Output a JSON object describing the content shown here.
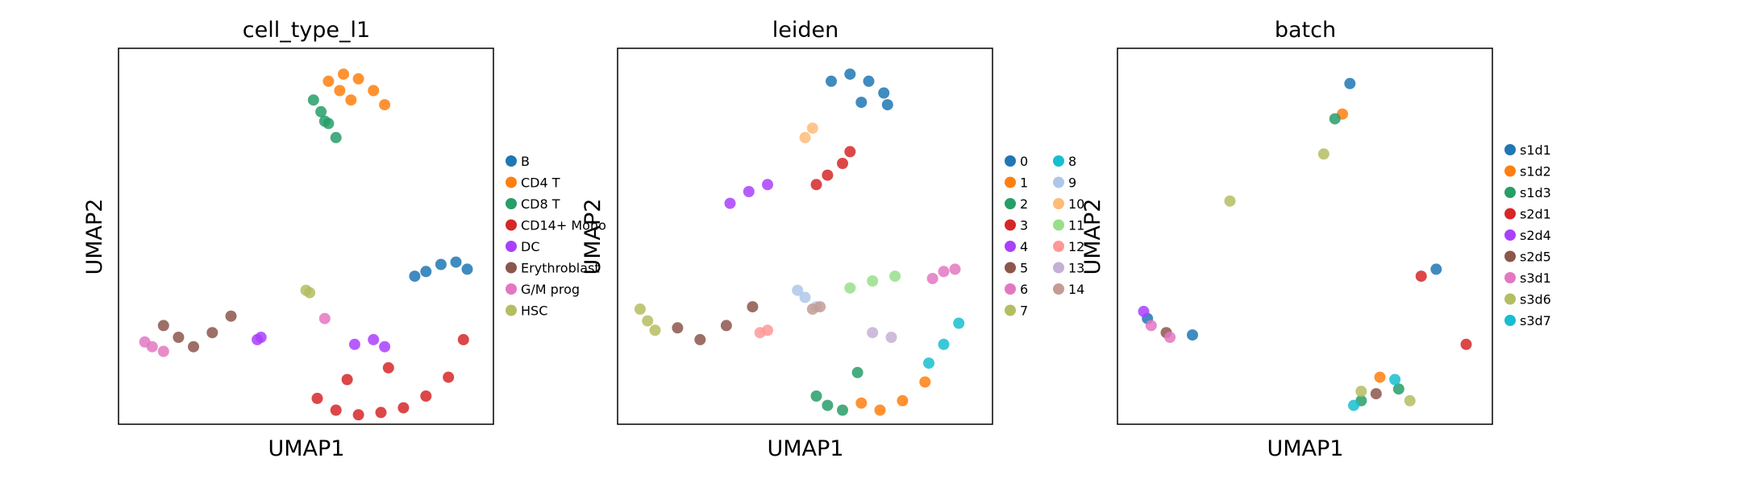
{
  "figure": {
    "panels": [
      {
        "title": "cell_type_l1",
        "xlabel": "UMAP1",
        "ylabel": "UMAP2",
        "legend": {
          "columns": 1,
          "entries": [
            {
              "label": "B",
              "color": "#1f77b4"
            },
            {
              "label": "CD4 T",
              "color": "#ff7f0e"
            },
            {
              "label": "CD8 T",
              "color": "#279e68"
            },
            {
              "label": "CD14+ Mono",
              "color": "#d62728"
            },
            {
              "label": "DC",
              "color": "#aa40fc"
            },
            {
              "label": "Erythroblast",
              "color": "#8c564b"
            },
            {
              "label": "G/M prog",
              "color": "#e377c2"
            },
            {
              "label": "HSC",
              "color": "#b5bd61"
            }
          ]
        }
      },
      {
        "title": "leiden",
        "xlabel": "UMAP1",
        "ylabel": "UMAP2",
        "legend": {
          "columns": 2,
          "entries": [
            {
              "label": "0",
              "color": "#1f77b4"
            },
            {
              "label": "1",
              "color": "#ff7f0e"
            },
            {
              "label": "2",
              "color": "#279e68"
            },
            {
              "label": "3",
              "color": "#d62728"
            },
            {
              "label": "4",
              "color": "#aa40fc"
            },
            {
              "label": "5",
              "color": "#8c564b"
            },
            {
              "label": "6",
              "color": "#e377c2"
            },
            {
              "label": "7",
              "color": "#b5bd61"
            },
            {
              "label": "8",
              "color": "#17becf"
            },
            {
              "label": "9",
              "color": "#aec7e8"
            },
            {
              "label": "10",
              "color": "#ffbb78"
            },
            {
              "label": "11",
              "color": "#98df8a"
            },
            {
              "label": "12",
              "color": "#ff9896"
            },
            {
              "label": "13",
              "color": "#c5b0d5"
            },
            {
              "label": "14",
              "color": "#c49c94"
            }
          ]
        }
      },
      {
        "title": "batch",
        "xlabel": "UMAP1",
        "ylabel": "UMAP2",
        "legend": {
          "columns": 1,
          "entries": [
            {
              "label": "s1d1",
              "color": "#1f77b4"
            },
            {
              "label": "s1d2",
              "color": "#ff7f0e"
            },
            {
              "label": "s1d3",
              "color": "#279e68"
            },
            {
              "label": "s2d1",
              "color": "#d62728"
            },
            {
              "label": "s2d4",
              "color": "#aa40fc"
            },
            {
              "label": "s2d5",
              "color": "#8c564b"
            },
            {
              "label": "s3d1",
              "color": "#e377c2"
            },
            {
              "label": "s3d6",
              "color": "#b5bd61"
            },
            {
              "label": "s3d7",
              "color": "#17becf"
            }
          ]
        }
      }
    ]
  },
  "chart_data": [
    {
      "type": "scatter",
      "title": "cell_type_l1",
      "xlabel": "UMAP1",
      "ylabel": "UMAP2",
      "ticks_shown": false,
      "grid": false,
      "legend_position": "right",
      "series": [
        {
          "name": "B",
          "color": "#1f77b4",
          "x": [
            8.2,
            8.6,
            9.0,
            9.3,
            7.9
          ],
          "y": [
            6.5,
            6.8,
            6.9,
            6.6,
            6.3
          ]
        },
        {
          "name": "CD4 T",
          "color": "#ff7f0e",
          "x": [
            5.6,
            6.0,
            6.4,
            6.8,
            7.1,
            6.2,
            5.9
          ],
          "y": [
            14.6,
            14.9,
            14.7,
            14.2,
            13.6,
            13.8,
            14.2
          ]
        },
        {
          "name": "CD8 T",
          "color": "#279e68",
          "x": [
            5.2,
            5.4,
            5.6,
            5.8,
            5.5
          ],
          "y": [
            13.8,
            13.3,
            12.8,
            12.2,
            12.9
          ]
        },
        {
          "name": "CD14+ Mono",
          "color": "#d62728",
          "x": [
            5.3,
            5.8,
            6.4,
            7.0,
            7.6,
            8.2,
            8.8,
            9.2,
            6.1,
            7.2
          ],
          "y": [
            1.1,
            0.6,
            0.4,
            0.5,
            0.7,
            1.2,
            2.0,
            3.6,
            1.9,
            2.4
          ]
        },
        {
          "name": "DC",
          "color": "#aa40fc",
          "x": [
            3.7,
            3.8,
            6.3,
            6.8,
            7.1
          ],
          "y": [
            3.6,
            3.7,
            3.4,
            3.6,
            3.3
          ]
        },
        {
          "name": "Erythroblast",
          "color": "#8c564b",
          "x": [
            1.2,
            1.6,
            2.0,
            2.5,
            3.0
          ],
          "y": [
            4.2,
            3.7,
            3.3,
            3.9,
            4.6
          ]
        },
        {
          "name": "G/M prog",
          "color": "#e377c2",
          "x": [
            0.7,
            0.9,
            1.2,
            5.5
          ],
          "y": [
            3.5,
            3.3,
            3.1,
            4.5
          ]
        },
        {
          "name": "HSC",
          "color": "#b5bd61",
          "x": [
            5.0,
            5.1
          ],
          "y": [
            5.7,
            5.6
          ]
        }
      ]
    },
    {
      "type": "scatter",
      "title": "leiden",
      "xlabel": "UMAP1",
      "ylabel": "UMAP2",
      "ticks_shown": false,
      "grid": false,
      "legend_position": "right",
      "series": [
        {
          "name": "0",
          "color": "#1f77b4",
          "x": [
            5.7,
            6.2,
            6.7,
            7.1,
            7.2,
            6.5
          ],
          "y": [
            14.6,
            14.9,
            14.6,
            14.1,
            13.6,
            13.7
          ]
        },
        {
          "name": "1",
          "color": "#ff7f0e",
          "x": [
            6.5,
            7.0,
            7.6,
            8.2
          ],
          "y": [
            0.9,
            0.6,
            1.0,
            1.8
          ]
        },
        {
          "name": "2",
          "color": "#279e68",
          "x": [
            5.3,
            5.6,
            6.0,
            6.4
          ],
          "y": [
            1.2,
            0.8,
            0.6,
            2.2
          ]
        },
        {
          "name": "3",
          "color": "#d62728",
          "x": [
            5.3,
            5.6,
            6.0,
            6.2
          ],
          "y": [
            10.2,
            10.6,
            11.1,
            11.6
          ]
        },
        {
          "name": "4",
          "color": "#aa40fc",
          "x": [
            3.0,
            3.5,
            4.0
          ],
          "y": [
            9.4,
            9.9,
            10.2
          ]
        },
        {
          "name": "5",
          "color": "#8c564b",
          "x": [
            1.6,
            2.2,
            2.9,
            3.6
          ],
          "y": [
            4.1,
            3.6,
            4.2,
            5.0
          ]
        },
        {
          "name": "6",
          "color": "#e377c2",
          "x": [
            8.4,
            8.7,
            9.0
          ],
          "y": [
            6.2,
            6.5,
            6.6
          ]
        },
        {
          "name": "7",
          "color": "#b5bd61",
          "x": [
            0.6,
            0.8,
            1.0
          ],
          "y": [
            4.9,
            4.4,
            4.0
          ]
        },
        {
          "name": "8",
          "color": "#17becf",
          "x": [
            8.3,
            8.7,
            9.1
          ],
          "y": [
            2.6,
            3.4,
            4.3
          ]
        },
        {
          "name": "9",
          "color": "#aec7e8",
          "x": [
            4.8,
            5.0,
            5.3
          ],
          "y": [
            5.7,
            5.4,
            5.0
          ]
        },
        {
          "name": "10",
          "color": "#ffbb78",
          "x": [
            5.0,
            5.2
          ],
          "y": [
            12.2,
            12.6
          ]
        },
        {
          "name": "11",
          "color": "#98df8a",
          "x": [
            6.2,
            6.8,
            7.4
          ],
          "y": [
            5.8,
            6.1,
            6.3
          ]
        },
        {
          "name": "12",
          "color": "#ff9896",
          "x": [
            3.8,
            4.0
          ],
          "y": [
            3.9,
            4.0
          ]
        },
        {
          "name": "13",
          "color": "#c5b0d5",
          "x": [
            6.8,
            7.3
          ],
          "y": [
            3.9,
            3.7
          ]
        },
        {
          "name": "14",
          "color": "#c49c94",
          "x": [
            5.2,
            5.4
          ],
          "y": [
            4.9,
            5.0
          ]
        }
      ]
    },
    {
      "type": "scatter",
      "title": "batch",
      "xlabel": "UMAP1",
      "ylabel": "UMAP2",
      "ticks_shown": false,
      "grid": false,
      "legend_position": "right",
      "series": [
        {
          "name": "s1d1",
          "color": "#1f77b4",
          "x": [
            0.8,
            6.2,
            8.5,
            2.0
          ],
          "y": [
            4.5,
            14.5,
            6.6,
            3.8
          ]
        },
        {
          "name": "s1d2",
          "color": "#ff7f0e",
          "x": [
            6.0,
            7.0
          ],
          "y": [
            13.2,
            2.0
          ]
        },
        {
          "name": "s1d3",
          "color": "#279e68",
          "x": [
            6.5,
            7.5,
            5.8
          ],
          "y": [
            1.0,
            1.5,
            13.0
          ]
        },
        {
          "name": "s2d1",
          "color": "#d62728",
          "x": [
            8.1,
            9.3
          ],
          "y": [
            6.3,
            3.4
          ]
        },
        {
          "name": "s2d4",
          "color": "#aa40fc",
          "x": [
            0.7
          ],
          "y": [
            4.8
          ]
        },
        {
          "name": "s2d5",
          "color": "#8c564b",
          "x": [
            1.3,
            6.9
          ],
          "y": [
            3.9,
            1.3
          ]
        },
        {
          "name": "s3d1",
          "color": "#e377c2",
          "x": [
            1.4,
            0.9
          ],
          "y": [
            3.7,
            4.2
          ]
        },
        {
          "name": "s3d6",
          "color": "#b5bd61",
          "x": [
            3.0,
            5.5,
            6.5,
            7.8
          ],
          "y": [
            9.5,
            11.5,
            1.4,
            1.0
          ]
        },
        {
          "name": "s3d7",
          "color": "#17becf",
          "x": [
            6.3,
            7.4
          ],
          "y": [
            0.8,
            1.9
          ]
        }
      ]
    }
  ]
}
